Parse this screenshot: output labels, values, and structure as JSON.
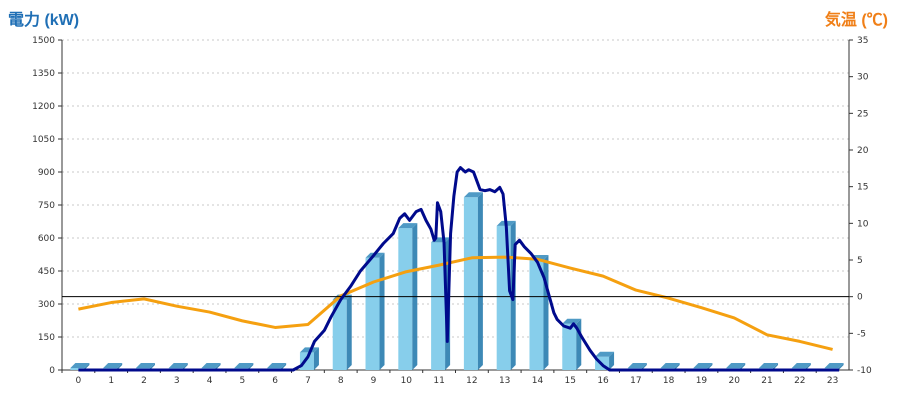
{
  "chart_data": {
    "type": "bar",
    "left_axis": {
      "label": "電力 (kW)",
      "ylim": [
        0,
        1500
      ],
      "ticks": [
        "0",
        "150",
        "300",
        "450",
        "600",
        "750",
        "900",
        "1050",
        "1200",
        "1350",
        "1500"
      ]
    },
    "right_axis": {
      "label": "気温 (℃)",
      "ylim": [
        -10,
        35
      ],
      "ticks": [
        "-10",
        "-5",
        "0",
        "5",
        "10",
        "15",
        "20",
        "25",
        "30",
        "35"
      ]
    },
    "categories": [
      "0",
      "1",
      "2",
      "3",
      "4",
      "5",
      "6",
      "7",
      "8",
      "9",
      "10",
      "11",
      "12",
      "13",
      "14",
      "15",
      "16",
      "17",
      "18",
      "19",
      "20",
      "21",
      "22",
      "23"
    ],
    "bar_series": {
      "values": [
        0,
        0,
        0,
        0,
        0,
        0,
        0,
        80,
        320,
        510,
        645,
        580,
        785,
        655,
        500,
        210,
        60,
        0,
        0,
        0,
        0,
        0,
        0,
        0
      ],
      "color": "#87ceeb"
    },
    "line_series": {
      "color": "#000a8c",
      "points": [
        [
          0,
          0
        ],
        [
          6.55,
          0
        ],
        [
          6.8,
          20
        ],
        [
          7.0,
          60
        ],
        [
          7.2,
          130
        ],
        [
          7.5,
          180
        ],
        [
          7.7,
          240
        ],
        [
          8.0,
          320
        ],
        [
          8.3,
          380
        ],
        [
          8.6,
          450
        ],
        [
          9.0,
          520
        ],
        [
          9.3,
          575
        ],
        [
          9.6,
          620
        ],
        [
          9.8,
          690
        ],
        [
          9.95,
          710
        ],
        [
          10.1,
          680
        ],
        [
          10.3,
          720
        ],
        [
          10.45,
          730
        ],
        [
          10.6,
          680
        ],
        [
          10.75,
          640
        ],
        [
          10.85,
          590
        ],
        [
          10.9,
          600
        ],
        [
          10.95,
          760
        ],
        [
          11.05,
          720
        ],
        [
          11.15,
          580
        ],
        [
          11.25,
          130
        ],
        [
          11.35,
          620
        ],
        [
          11.45,
          790
        ],
        [
          11.55,
          900
        ],
        [
          11.65,
          920
        ],
        [
          11.8,
          900
        ],
        [
          11.9,
          910
        ],
        [
          12.05,
          900
        ],
        [
          12.15,
          860
        ],
        [
          12.25,
          820
        ],
        [
          12.4,
          815
        ],
        [
          12.55,
          820
        ],
        [
          12.7,
          810
        ],
        [
          12.85,
          830
        ],
        [
          12.95,
          800
        ],
        [
          13.05,
          650
        ],
        [
          13.15,
          360
        ],
        [
          13.25,
          320
        ],
        [
          13.32,
          570
        ],
        [
          13.45,
          590
        ],
        [
          13.6,
          560
        ],
        [
          13.8,
          530
        ],
        [
          14.0,
          490
        ],
        [
          14.2,
          420
        ],
        [
          14.35,
          340
        ],
        [
          14.5,
          260
        ],
        [
          14.6,
          230
        ],
        [
          14.8,
          200
        ],
        [
          15.0,
          190
        ],
        [
          15.1,
          210
        ],
        [
          15.2,
          190
        ],
        [
          15.35,
          150
        ],
        [
          15.6,
          90
        ],
        [
          15.8,
          50
        ],
        [
          16.0,
          20
        ],
        [
          16.2,
          0
        ],
        [
          23.2,
          0
        ]
      ]
    },
    "temp_series": {
      "color": "#f5a010",
      "values": [
        -1.7,
        -0.8,
        -0.3,
        -1.3,
        -2.1,
        -3.3,
        -4.2,
        -3.8,
        0.1,
        2.0,
        3.4,
        4.3,
        5.3,
        5.4,
        5.1,
        3.9,
        2.8,
        0.9,
        -0.2,
        -1.5,
        -2.9,
        -5.2,
        -6.1,
        -7.2
      ]
    },
    "reference_line": {
      "axis": "right",
      "value": 0,
      "color": "#000000"
    },
    "grid": true
  }
}
